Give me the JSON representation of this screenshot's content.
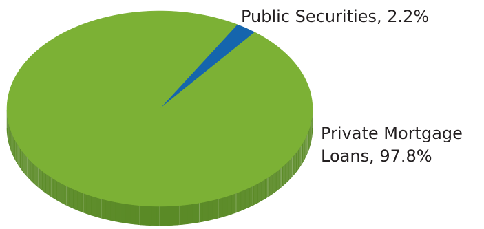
{
  "chart_data": {
    "type": "pie",
    "style": "3d",
    "slices": [
      {
        "label": "Public Securities",
        "value": 2.2,
        "color": "#1565ad",
        "side_color": "#0d4577"
      },
      {
        "label": "Private Mortgage Loans",
        "value": 97.8,
        "color": "#7cb135",
        "side_color": "#5a8a26"
      }
    ],
    "labels": {
      "public": "Public Securities, 2.2%",
      "private_line1": "Private Mortgage",
      "private_line2": "Loans, 97.8%"
    }
  }
}
